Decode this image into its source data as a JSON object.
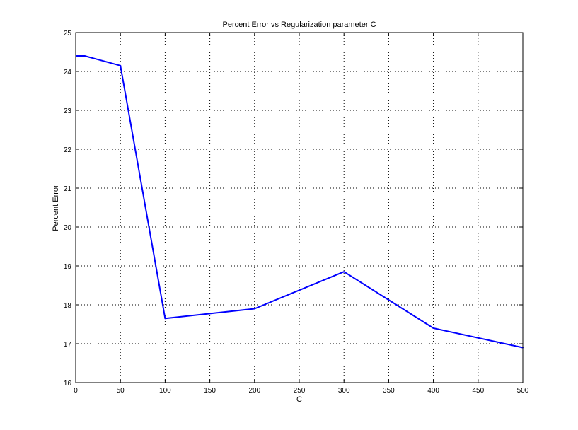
{
  "chart_data": {
    "type": "line",
    "title": "Percent Error vs Regularization parameter C",
    "xlabel": "C",
    "ylabel": "Percent Error",
    "xlim": [
      0,
      500
    ],
    "ylim": [
      16,
      25
    ],
    "xticks": [
      0,
      50,
      100,
      150,
      200,
      250,
      300,
      350,
      400,
      450,
      500
    ],
    "yticks": [
      16,
      17,
      18,
      19,
      20,
      21,
      22,
      23,
      24,
      25
    ],
    "grid": true,
    "series": [
      {
        "color": "#0000ff",
        "x": [
          1,
          10,
          50,
          100,
          200,
          300,
          400,
          500
        ],
        "y": [
          24.4,
          24.4,
          24.15,
          17.65,
          17.9,
          18.85,
          17.4,
          16.9
        ]
      }
    ]
  }
}
